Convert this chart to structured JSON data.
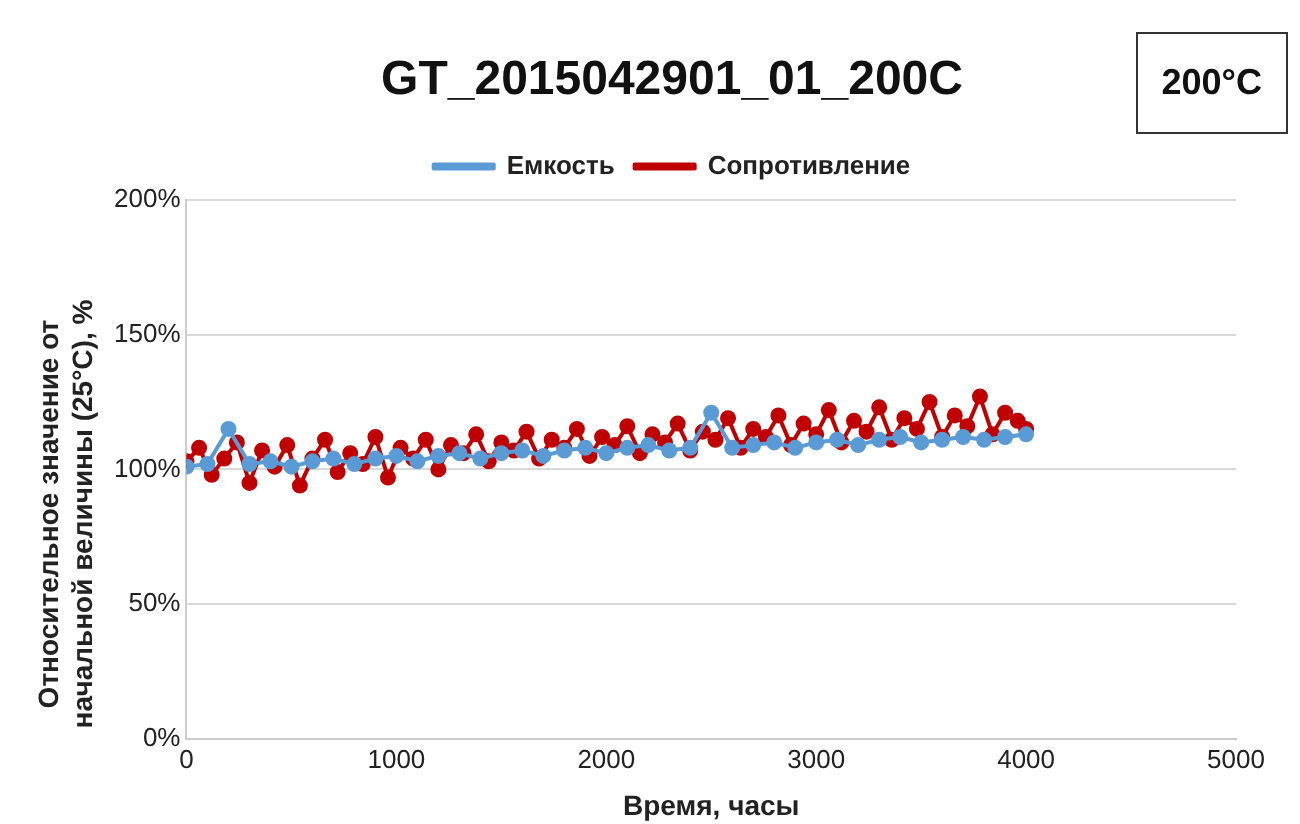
{
  "chart_data": {
    "type": "line",
    "title": "GT_2015042901_01_200C",
    "xlabel": "Время, часы",
    "ylabel": "Относительное значение от начальной величины (25°C), %",
    "annotations": [
      "200°C"
    ],
    "xlim": [
      0,
      5000
    ],
    "xticks": [
      0,
      1000,
      2000,
      3000,
      4000,
      5000
    ],
    "ylim": [
      0,
      200
    ],
    "yticks": [
      {
        "value": 0,
        "label": "0%"
      },
      {
        "value": 50,
        "label": "50%"
      },
      {
        "value": 100,
        "label": "100%"
      },
      {
        "value": 150,
        "label": "150%"
      },
      {
        "value": 200,
        "label": "200%"
      }
    ],
    "grid": "y",
    "legend": "top",
    "marker": "circle",
    "line_style": "solid",
    "series": [
      {
        "name": "Емкость",
        "color": "#5b9bd5",
        "x": [
          0,
          100,
          200,
          300,
          400,
          500,
          600,
          700,
          800,
          900,
          1000,
          1100,
          1200,
          1300,
          1400,
          1500,
          1600,
          1700,
          1800,
          1900,
          2000,
          2100,
          2200,
          2300,
          2400,
          2500,
          2600,
          2700,
          2800,
          2900,
          3000,
          3100,
          3200,
          3300,
          3400,
          3500,
          3600,
          3700,
          3800,
          3900,
          4000
        ],
        "values": [
          101,
          102,
          115,
          102,
          103,
          101,
          103,
          104,
          102,
          104,
          105,
          103,
          105,
          106,
          104,
          106,
          107,
          105,
          107,
          108,
          106,
          108,
          109,
          107,
          108,
          121,
          108,
          109,
          110,
          108,
          110,
          111,
          109,
          111,
          112,
          110,
          111,
          112,
          111,
          112,
          113
        ]
      },
      {
        "name": "Сопротивление",
        "color": "#c00000",
        "x": [
          0,
          60,
          120,
          180,
          240,
          300,
          360,
          420,
          480,
          540,
          600,
          660,
          720,
          780,
          840,
          900,
          960,
          1020,
          1080,
          1140,
          1200,
          1260,
          1320,
          1380,
          1440,
          1500,
          1560,
          1620,
          1680,
          1740,
          1800,
          1860,
          1920,
          1980,
          2040,
          2100,
          2160,
          2220,
          2280,
          2340,
          2400,
          2460,
          2520,
          2580,
          2640,
          2700,
          2760,
          2820,
          2880,
          2940,
          3000,
          3060,
          3120,
          3180,
          3240,
          3300,
          3360,
          3420,
          3480,
          3540,
          3600,
          3660,
          3720,
          3780,
          3840,
          3900,
          3960,
          4000
        ],
        "values": [
          103,
          108,
          98,
          104,
          110,
          95,
          107,
          101,
          109,
          94,
          104,
          111,
          99,
          106,
          102,
          112,
          97,
          108,
          104,
          111,
          100,
          109,
          106,
          113,
          103,
          110,
          107,
          114,
          104,
          111,
          108,
          115,
          105,
          112,
          109,
          116,
          106,
          113,
          110,
          117,
          107,
          114,
          111,
          119,
          108,
          115,
          112,
          120,
          109,
          117,
          113,
          122,
          110,
          118,
          114,
          123,
          111,
          119,
          115,
          125,
          112,
          120,
          116,
          127,
          113,
          121,
          118,
          115
        ]
      }
    ]
  }
}
